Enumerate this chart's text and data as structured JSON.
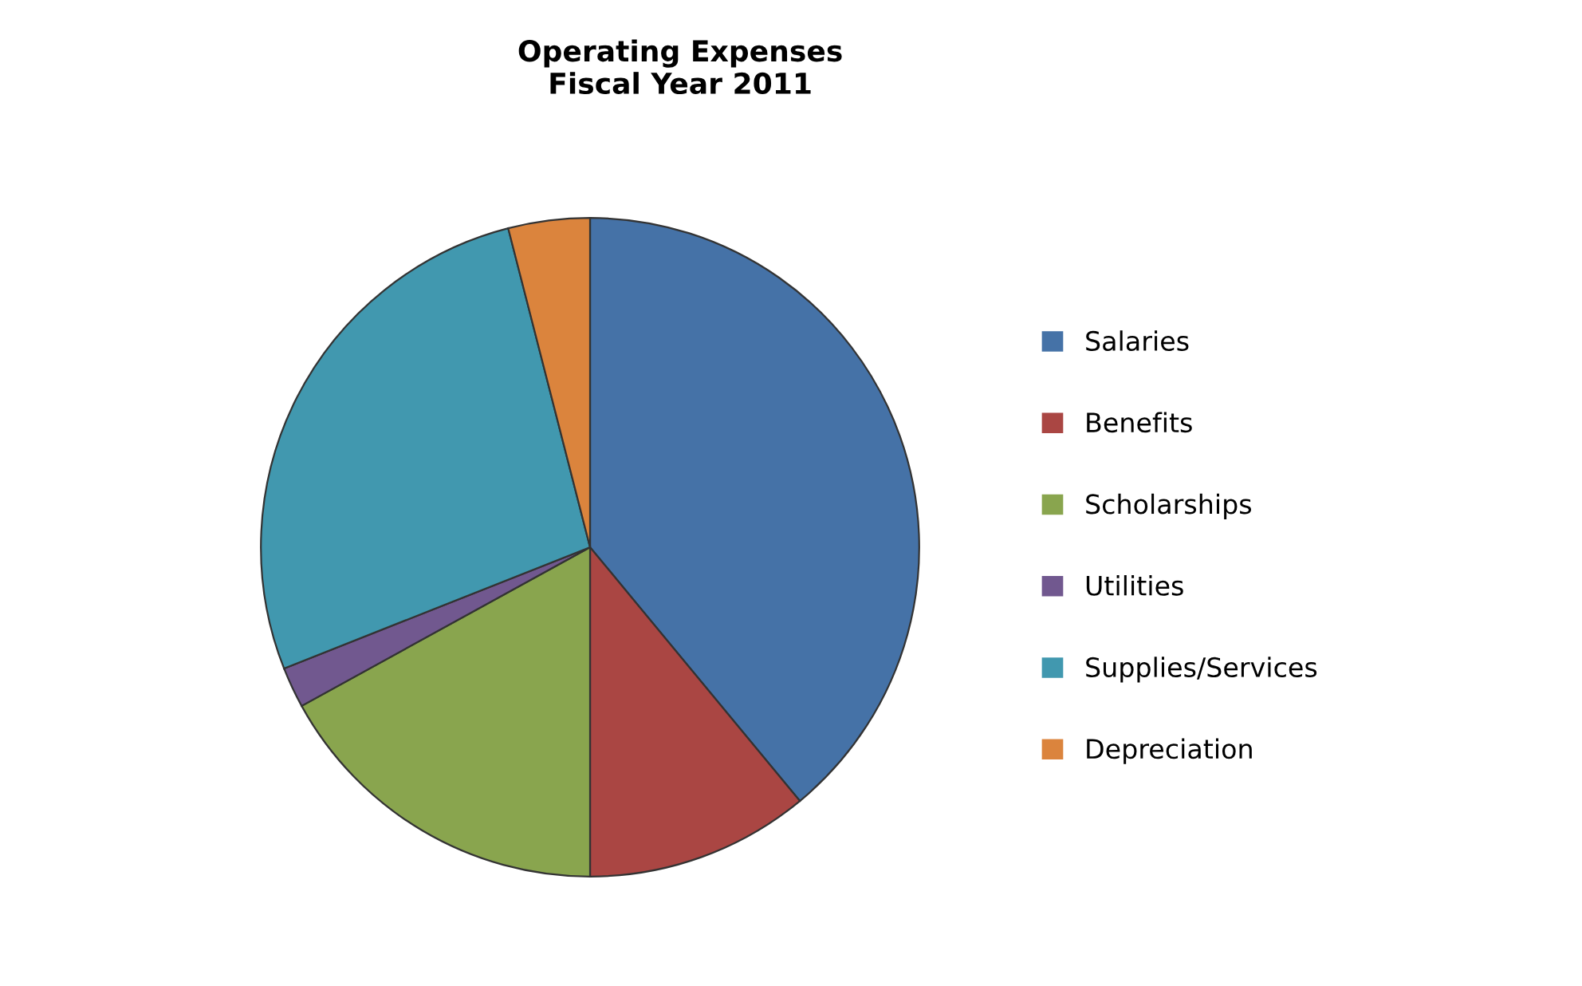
{
  "chart_data": {
    "type": "pie",
    "title": "Operating Expenses\nFiscal Year 2011",
    "categories": [
      "Salaries",
      "Benefits",
      "Scholarships",
      "Utilities",
      "Supplies/Services",
      "Depreciation"
    ],
    "values": [
      39,
      11,
      17,
      2,
      27,
      4
    ],
    "colors": [
      "#4572a7",
      "#aa4643",
      "#89a54e",
      "#71588f",
      "#4198af",
      "#db843d"
    ],
    "legend": "right"
  }
}
